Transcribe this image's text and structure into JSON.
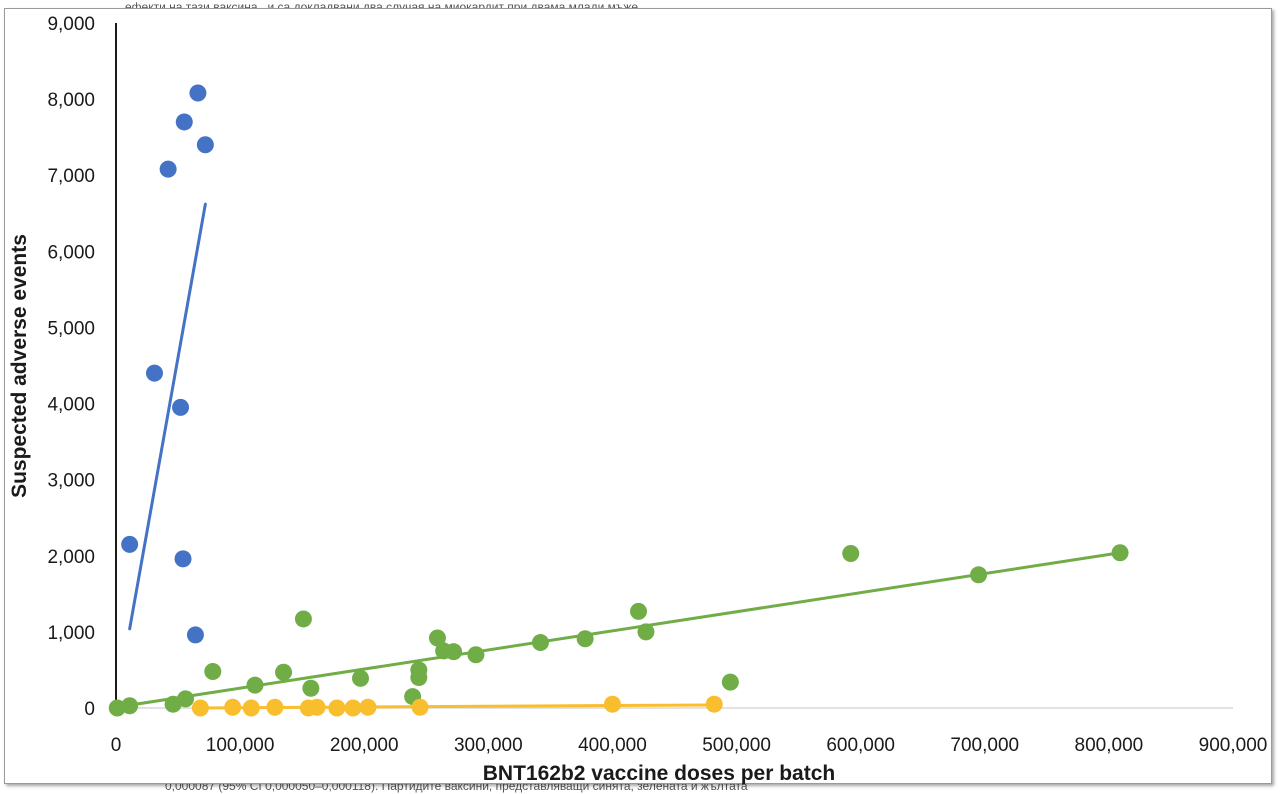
{
  "background_text": {
    "top": "ефекти на тази ваксина , и са докладвани два случая на миокардит при двама млади мъже",
    "bottom": "0,000087 (95% CI 0,000050–0,000118). Партидите ваксини, представляващи синята, зелената и жълтата"
  },
  "chart_data": {
    "type": "scatter",
    "title": "",
    "xlabel": "BNT162b2 vaccine doses per batch",
    "ylabel": "Suspected adverse events",
    "xlim": [
      0,
      900000
    ],
    "ylim": [
      0,
      9000
    ],
    "x_ticks": [
      "0",
      "100,000",
      "200,000",
      "300,000",
      "400,000",
      "500,000",
      "600,000",
      "700,000",
      "800,000",
      "900,000"
    ],
    "y_ticks": [
      "0",
      "1,000",
      "2,000",
      "3,000",
      "4,000",
      "5,000",
      "6,000",
      "7,000",
      "8,000",
      "9,000"
    ],
    "grid": false,
    "legend": "none",
    "series": [
      {
        "color": "#4472c4",
        "points": [
          [
            11000,
            2150
          ],
          [
            31000,
            4400
          ],
          [
            42000,
            7080
          ],
          [
            52000,
            3950
          ],
          [
            55000,
            7700
          ],
          [
            54000,
            1960
          ],
          [
            64000,
            960
          ],
          [
            66000,
            8080
          ],
          [
            72000,
            7400
          ]
        ],
        "trendline": [
          [
            11000,
            1040
          ],
          [
            72000,
            6620
          ]
        ]
      },
      {
        "color": "#70ad47",
        "points": [
          [
            1000,
            0
          ],
          [
            11000,
            30
          ],
          [
            46000,
            50
          ],
          [
            56000,
            120
          ],
          [
            78000,
            480
          ],
          [
            112000,
            300
          ],
          [
            135000,
            470
          ],
          [
            151000,
            1170
          ],
          [
            157000,
            260
          ],
          [
            197000,
            390
          ],
          [
            239000,
            150
          ],
          [
            244000,
            400
          ],
          [
            244000,
            500
          ],
          [
            259000,
            920
          ],
          [
            264000,
            750
          ],
          [
            272000,
            740
          ],
          [
            290000,
            700
          ],
          [
            342000,
            860
          ],
          [
            378000,
            910
          ],
          [
            421000,
            1270
          ],
          [
            427000,
            1000
          ],
          [
            495000,
            340
          ],
          [
            592000,
            2030
          ],
          [
            695000,
            1750
          ],
          [
            809000,
            2040
          ]
        ],
        "trendline": [
          [
            0,
            10
          ],
          [
            809000,
            2040
          ]
        ]
      },
      {
        "color": "#f9be2e",
        "points": [
          [
            68000,
            0
          ],
          [
            94000,
            10
          ],
          [
            109000,
            0
          ],
          [
            128000,
            10
          ],
          [
            155000,
            0
          ],
          [
            162000,
            10
          ],
          [
            178000,
            0
          ],
          [
            191000,
            0
          ],
          [
            203000,
            10
          ],
          [
            245000,
            10
          ],
          [
            400000,
            50
          ],
          [
            482000,
            50
          ]
        ],
        "trendline": [
          [
            68000,
            0
          ],
          [
            482000,
            40
          ]
        ]
      }
    ]
  }
}
